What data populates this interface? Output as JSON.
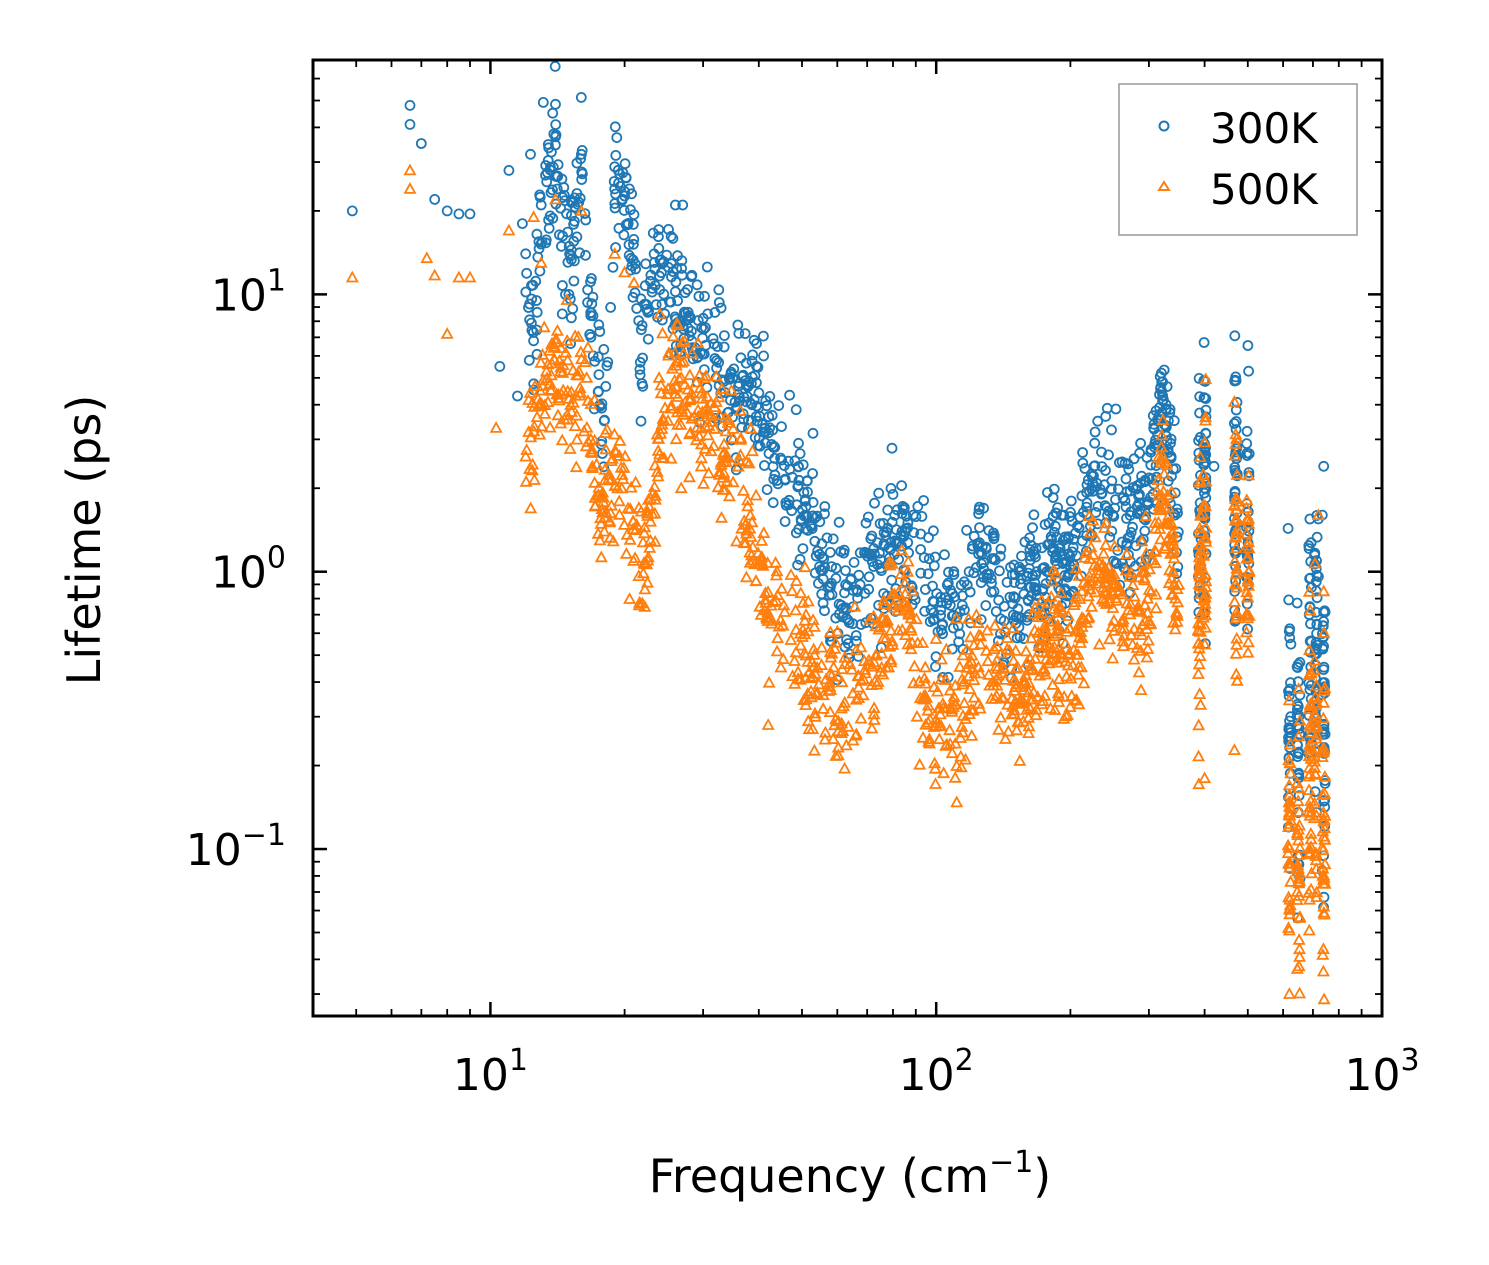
{
  "chart_data": {
    "type": "scatter",
    "xscale": "log",
    "yscale": "log",
    "xlabel": "Frequency (cm",
    "xlabel_sup": "−1",
    "xlabel_end": ")",
    "ylabel": "Lifetime (ps)",
    "xlim": [
      4,
      1000
    ],
    "ylim": [
      0.025,
      70
    ],
    "xticks": [
      {
        "value": 10,
        "base": "10",
        "exp": "1"
      },
      {
        "value": 100,
        "base": "10",
        "exp": "2"
      },
      {
        "value": 1000,
        "base": "10",
        "exp": "3"
      }
    ],
    "yticks": [
      {
        "value": 0.1,
        "base": "10",
        "exp": "−1"
      },
      {
        "value": 1,
        "base": "10",
        "exp": "0"
      },
      {
        "value": 10,
        "base": "10",
        "exp": "1"
      }
    ],
    "legend": {
      "placement": "top-right"
    },
    "series": [
      {
        "name": "300K",
        "marker": "circle",
        "color": "#1f77b4",
        "trend": [
          [
            4.9,
            20
          ],
          [
            6.6,
            48
          ],
          [
            7,
            35
          ],
          [
            7.5,
            22
          ],
          [
            8,
            20
          ],
          [
            9,
            20
          ],
          [
            10.5,
            5.5
          ],
          [
            11.5,
            4.3
          ],
          [
            12,
            14
          ],
          [
            12.5,
            6.8
          ],
          [
            13,
            21
          ],
          [
            14,
            37
          ],
          [
            15,
            9.5
          ],
          [
            16,
            32
          ],
          [
            17,
            6
          ],
          [
            18,
            3.5
          ],
          [
            19,
            24
          ],
          [
            20,
            24
          ],
          [
            21,
            12
          ],
          [
            22,
            6
          ],
          [
            23,
            11
          ],
          [
            24,
            14
          ],
          [
            25,
            11
          ],
          [
            26,
            9.5
          ],
          [
            28,
            8
          ],
          [
            30,
            7
          ],
          [
            32,
            6.5
          ],
          [
            34,
            5.5
          ],
          [
            36,
            4.2
          ],
          [
            38,
            4.5
          ],
          [
            40,
            4
          ],
          [
            42,
            3
          ],
          [
            45,
            2.3
          ],
          [
            48,
            2
          ],
          [
            50,
            1.8
          ],
          [
            54,
            1.4
          ],
          [
            58,
            0.9
          ],
          [
            62,
            0.75
          ],
          [
            66,
            0.82
          ],
          [
            70,
            0.95
          ],
          [
            75,
            1.1
          ],
          [
            80,
            1.25
          ],
          [
            85,
            1.35
          ],
          [
            90,
            1.2
          ],
          [
            95,
            0.95
          ],
          [
            100,
            0.75
          ],
          [
            110,
            0.7
          ],
          [
            120,
            1.05
          ],
          [
            128,
            1.25
          ],
          [
            135,
            0.9
          ],
          [
            145,
            0.7
          ],
          [
            155,
            0.8
          ],
          [
            165,
            0.95
          ],
          [
            175,
            0.85
          ],
          [
            185,
            1.3
          ],
          [
            195,
            1.05
          ],
          [
            210,
            1.5
          ],
          [
            225,
            2.4
          ],
          [
            235,
            2.2
          ],
          [
            245,
            1.9
          ],
          [
            260,
            1.7
          ],
          [
            275,
            1.5
          ],
          [
            285,
            1.8
          ],
          [
            300,
            1.6
          ],
          [
            320,
            4.2
          ],
          [
            335,
            2.5
          ],
          [
            350,
            1.2
          ],
          [
            380,
            1.5
          ],
          [
            400,
            2.2
          ],
          [
            430,
            1.6
          ],
          [
            470,
            1.9
          ],
          [
            500,
            1.7
          ],
          [
            520,
            1.2
          ],
          [
            600,
            0.5
          ],
          [
            650,
            0.4
          ],
          [
            700,
            0.95
          ],
          [
            740,
            0.45
          ]
        ],
        "outliers": [
          [
            4.9,
            20
          ],
          [
            6.6,
            48
          ],
          [
            6.6,
            41
          ],
          [
            7,
            35
          ],
          [
            7.5,
            22
          ],
          [
            8,
            20
          ],
          [
            8.5,
            19.5
          ],
          [
            9,
            19.5
          ],
          [
            10.5,
            5.5
          ],
          [
            11,
            28
          ],
          [
            11.5,
            4.3
          ],
          [
            11.8,
            18
          ],
          [
            12,
            14
          ],
          [
            12.3,
            32
          ],
          [
            12.5,
            6.8
          ],
          [
            13,
            21
          ],
          [
            14,
            37
          ],
          [
            14.5,
            8.5
          ],
          [
            15,
            10
          ],
          [
            16,
            32
          ],
          [
            17,
            6
          ],
          [
            18,
            3.5
          ],
          [
            19,
            24
          ],
          [
            20,
            23.5
          ],
          [
            20.5,
            24
          ],
          [
            26,
            21
          ],
          [
            27,
            21
          ],
          [
            41,
            6
          ],
          [
            80,
            1.9
          ],
          [
            320,
            5.2
          ],
          [
            420,
            2.4
          ],
          [
            470,
            2.7
          ],
          [
            720,
            1.55
          ],
          [
            740,
            2.4
          ],
          [
            720,
            0.96
          ]
        ]
      },
      {
        "name": "500K",
        "marker": "triangle",
        "color": "#ff7f0e",
        "trend": [
          [
            4.9,
            11.5
          ],
          [
            6.6,
            28
          ],
          [
            7,
            24
          ],
          [
            7.5,
            13.5
          ],
          [
            8,
            7.2
          ],
          [
            9,
            11.5
          ],
          [
            10.3,
            3.3
          ],
          [
            11,
            17
          ],
          [
            12,
            2.6
          ],
          [
            13,
            4
          ],
          [
            14,
            5.5
          ],
          [
            15,
            4.5
          ],
          [
            16,
            5
          ],
          [
            17,
            2.5
          ],
          [
            18,
            1.8
          ],
          [
            19,
            2.5
          ],
          [
            20,
            2
          ],
          [
            21,
            1.4
          ],
          [
            22,
            1.2
          ],
          [
            23,
            1.5
          ],
          [
            24,
            3.5
          ],
          [
            25,
            4.5
          ],
          [
            26,
            4.3
          ],
          [
            28,
            4
          ],
          [
            30,
            3.8
          ],
          [
            32,
            3.2
          ],
          [
            34,
            2.7
          ],
          [
            36,
            2.2
          ],
          [
            38,
            1.5
          ],
          [
            40,
            1.1
          ],
          [
            42,
            0.8
          ],
          [
            45,
            0.6
          ],
          [
            48,
            0.6
          ],
          [
            50,
            0.55
          ],
          [
            54,
            0.42
          ],
          [
            58,
            0.36
          ],
          [
            62,
            0.33
          ],
          [
            66,
            0.37
          ],
          [
            70,
            0.45
          ],
          [
            75,
            0.55
          ],
          [
            80,
            0.7
          ],
          [
            85,
            0.75
          ],
          [
            90,
            0.5
          ],
          [
            95,
            0.3
          ],
          [
            100,
            0.28
          ],
          [
            110,
            0.32
          ],
          [
            120,
            0.42
          ],
          [
            128,
            0.55
          ],
          [
            135,
            0.45
          ],
          [
            145,
            0.38
          ],
          [
            155,
            0.35
          ],
          [
            165,
            0.45
          ],
          [
            175,
            0.55
          ],
          [
            185,
            0.65
          ],
          [
            195,
            0.52
          ],
          [
            210,
            0.6
          ],
          [
            225,
            1.1
          ],
          [
            235,
            1.0
          ],
          [
            245,
            0.8
          ],
          [
            260,
            0.75
          ],
          [
            275,
            0.7
          ],
          [
            285,
            0.72
          ],
          [
            300,
            0.7
          ],
          [
            320,
            2.2
          ],
          [
            335,
            1.4
          ],
          [
            350,
            0.6
          ],
          [
            380,
            0.55
          ],
          [
            400,
            1.2
          ],
          [
            430,
            0.8
          ],
          [
            470,
            1.1
          ],
          [
            500,
            1.0
          ],
          [
            520,
            0.7
          ],
          [
            600,
            0.2
          ],
          [
            650,
            0.15
          ],
          [
            700,
            0.38
          ],
          [
            740,
            0.2
          ]
        ],
        "outliers": [
          [
            4.9,
            11.5
          ],
          [
            6.6,
            28
          ],
          [
            6.6,
            24
          ],
          [
            7.2,
            13.5
          ],
          [
            7.5,
            11.7
          ],
          [
            8,
            7.2
          ],
          [
            8.5,
            11.5
          ],
          [
            9,
            11.5
          ],
          [
            10.3,
            3.3
          ],
          [
            11,
            17
          ],
          [
            12,
            2.6
          ],
          [
            12.5,
            19
          ],
          [
            13,
            13
          ],
          [
            14,
            22
          ],
          [
            15,
            4.2
          ],
          [
            16,
            20
          ],
          [
            19,
            14
          ],
          [
            20,
            12
          ],
          [
            21,
            11
          ],
          [
            24,
            8.5
          ],
          [
            42,
            0.28
          ],
          [
            400,
            0.18
          ],
          [
            620,
            0.03
          ],
          [
            720,
            1.6
          ],
          [
            740,
            0.85
          ]
        ]
      }
    ]
  }
}
